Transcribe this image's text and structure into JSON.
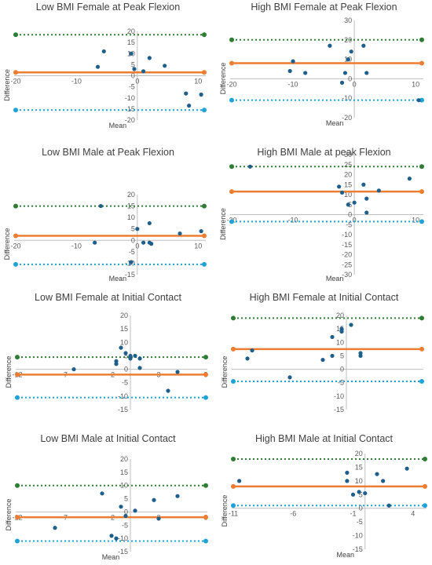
{
  "colors": {
    "upper": "#2e7d32",
    "mean_line": "#ed7d31",
    "lower": "#1fa3d6",
    "points": "#1f5f8b",
    "axis": "#bfbfbf"
  },
  "chart_data": [
    {
      "type": "scatter",
      "title": "Low BMI Female at Peak Flexion",
      "xlabel": "Mean",
      "ylabel": "Difference",
      "xlim": [
        -20,
        11
      ],
      "ylim": [
        -20,
        20
      ],
      "xticks": [
        -20,
        -10,
        0,
        10
      ],
      "yticks": [
        -20,
        -15,
        -10,
        -5,
        0,
        5,
        10,
        15,
        20
      ],
      "points": [
        [
          -5.5,
          11
        ],
        [
          -6.5,
          4
        ],
        [
          -1,
          10
        ],
        [
          -0.5,
          3
        ],
        [
          1,
          2
        ],
        [
          2,
          8
        ],
        [
          4.5,
          4.5
        ],
        [
          8,
          -8
        ],
        [
          8.5,
          -13.5
        ],
        [
          10.5,
          -8.5
        ]
      ],
      "upper_loa": 18.5,
      "bias": 1.5,
      "lower_loa": -15.5
    },
    {
      "type": "scatter",
      "title": "High BMI Female at Peak Flexion",
      "xlabel": "Mean",
      "ylabel": "Difference",
      "xlim": [
        -20,
        11
      ],
      "ylim": [
        -20,
        30
      ],
      "xticks": [
        -20,
        -10,
        0,
        10
      ],
      "yticks": [
        -20,
        -10,
        0,
        10,
        20,
        30
      ],
      "points": [
        [
          -10,
          9
        ],
        [
          -10.5,
          4
        ],
        [
          -8,
          3
        ],
        [
          -4,
          17
        ],
        [
          -1.5,
          3
        ],
        [
          -2,
          -2
        ],
        [
          -1,
          10
        ],
        [
          -0.5,
          14
        ],
        [
          1.5,
          17
        ],
        [
          2,
          3
        ],
        [
          10.5,
          -11
        ]
      ],
      "upper_loa": 20,
      "bias": 8,
      "lower_loa": -11
    },
    {
      "type": "scatter",
      "title": "Low BMI Male at Peak Flexion",
      "xlabel": "Mean",
      "ylabel": "Difference",
      "xlim": [
        -20,
        11
      ],
      "ylim": [
        -15,
        20
      ],
      "xticks": [
        -20,
        -10,
        0,
        10
      ],
      "yticks": [
        -15,
        -10,
        -5,
        0,
        5,
        10,
        15,
        20
      ],
      "points": [
        [
          -6,
          15
        ],
        [
          -7,
          -1
        ],
        [
          -1,
          -9.5
        ],
        [
          0,
          5
        ],
        [
          1,
          -1
        ],
        [
          2,
          7.5
        ],
        [
          2,
          -1
        ],
        [
          2.3,
          -1.5
        ],
        [
          7,
          3
        ],
        [
          10.5,
          4
        ]
      ],
      "upper_loa": 15,
      "bias": 2,
      "lower_loa": -10.5
    },
    {
      "type": "scatter",
      "title": "High BMI Male at peak Flexion",
      "xlabel": "Mean",
      "ylabel": "Difference",
      "xlim": [
        -20,
        11
      ],
      "ylim": [
        -30,
        30
      ],
      "xticks": [
        -20,
        -10,
        0,
        10
      ],
      "yticks": [
        -30,
        -25,
        -20,
        -15,
        -10,
        -5,
        0,
        5,
        10,
        15,
        20,
        25,
        30
      ],
      "points": [
        [
          -17,
          24
        ],
        [
          -2.5,
          14
        ],
        [
          -2,
          11
        ],
        [
          -1,
          5
        ],
        [
          0,
          6
        ],
        [
          1.5,
          15
        ],
        [
          2,
          8
        ],
        [
          2,
          1
        ],
        [
          4,
          12
        ],
        [
          9,
          18
        ]
      ],
      "upper_loa": 24,
      "bias": 11.5,
      "lower_loa": -3.5
    },
    {
      "type": "scatter",
      "title": "Low BMI Female at Initial Contact",
      "xlabel": "",
      "ylabel": "Difference",
      "xlim": [
        -12,
        8
      ],
      "ylim": [
        -15,
        20
      ],
      "xticks": [
        -12,
        -7,
        -2,
        3,
        8
      ],
      "yticks": [
        -15,
        -10,
        -5,
        0,
        5,
        10,
        15,
        20
      ],
      "points": [
        [
          -6,
          0
        ],
        [
          -1.5,
          2
        ],
        [
          -1.5,
          3
        ],
        [
          -1,
          8
        ],
        [
          -0.5,
          6
        ],
        [
          0,
          4
        ],
        [
          0,
          5
        ],
        [
          0.5,
          5
        ],
        [
          1,
          4
        ],
        [
          1,
          0.5
        ],
        [
          4,
          -8
        ],
        [
          5,
          -1
        ]
      ],
      "upper_loa": 4.5,
      "bias": -2,
      "lower_loa": -10.5
    },
    {
      "type": "scatter",
      "title": "High BMI Female at Initial Contact",
      "xlabel": "",
      "ylabel": "Difference",
      "xlim": [
        -12,
        8
      ],
      "ylim": [
        -15,
        20
      ],
      "xticks": [],
      "yticks": [
        -15,
        -10,
        -5,
        0,
        5,
        10,
        15,
        20
      ],
      "points": [
        [
          -10.5,
          4
        ],
        [
          -10,
          7
        ],
        [
          -6,
          -3
        ],
        [
          -2.5,
          3.5
        ],
        [
          -1.5,
          5
        ],
        [
          -1.5,
          12
        ],
        [
          -0.5,
          15
        ],
        [
          0.5,
          16.5
        ],
        [
          1.5,
          6
        ],
        [
          1.5,
          5
        ],
        [
          -0.5,
          14
        ]
      ],
      "upper_loa": 19,
      "bias": 7.5,
      "lower_loa": -4.5
    },
    {
      "type": "scatter",
      "title": "Low BMI Male at Initial Contact",
      "xlabel": "Mean",
      "ylabel": "Difference",
      "xlim": [
        -12,
        8
      ],
      "ylim": [
        -15,
        20
      ],
      "xticks": [
        -12,
        -7,
        -2,
        3,
        8
      ],
      "yticks": [
        -15,
        -10,
        -5,
        0,
        5,
        10,
        15,
        20
      ],
      "points": [
        [
          -8,
          -6
        ],
        [
          -3,
          7
        ],
        [
          -2,
          -9
        ],
        [
          -1.5,
          -10
        ],
        [
          -1,
          2
        ],
        [
          -0.5,
          -1.5
        ],
        [
          0.5,
          0.5
        ],
        [
          2.5,
          4.5
        ],
        [
          3,
          -2.5
        ],
        [
          5,
          6
        ]
      ],
      "upper_loa": 10,
      "bias": -2,
      "lower_loa": -11
    },
    {
      "type": "scatter",
      "title": "High BMI Male at Initial Contact",
      "xlabel": "Mean",
      "ylabel": "Difference",
      "xlim": [
        -11,
        5
      ],
      "ylim": [
        -15,
        20
      ],
      "xticks": [
        -11,
        -6,
        -1,
        4
      ],
      "yticks": [
        -15,
        -10,
        -5,
        0,
        5,
        10,
        15,
        20
      ],
      "points": [
        [
          -10.5,
          10
        ],
        [
          -1.5,
          13
        ],
        [
          -1.5,
          10
        ],
        [
          -1,
          5
        ],
        [
          -0.5,
          6
        ],
        [
          0,
          5.5
        ],
        [
          1,
          12.5
        ],
        [
          1.5,
          10
        ],
        [
          2,
          1
        ],
        [
          3.5,
          14.5
        ]
      ],
      "upper_loa": 18,
      "bias": 8,
      "lower_loa": 1
    }
  ]
}
